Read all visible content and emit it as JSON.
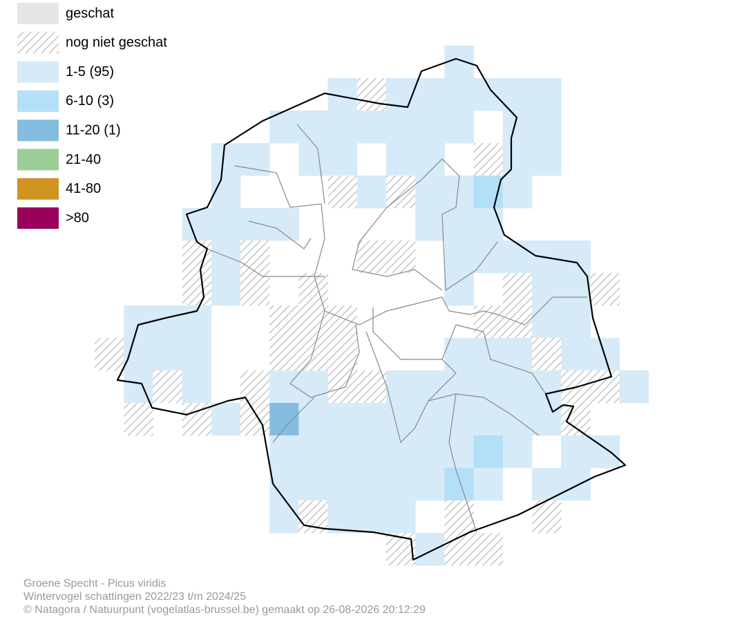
{
  "legend": {
    "items": [
      {
        "label": "geschat",
        "color": "#e6e6e6"
      },
      {
        "label": "nog niet geschat",
        "pattern": "hatch"
      },
      {
        "label": "1-5 (95)",
        "color": "#d6eaf8"
      },
      {
        "label": "6-10 (3)",
        "color": "#b3e0f7"
      },
      {
        "label": "11-20 (1)",
        "color": "#85bde0"
      },
      {
        "label": "21-40",
        "color": "#9acd98"
      },
      {
        "label": "41-80",
        "color": "#d09320"
      },
      {
        "label": ">80",
        "color": "#99005c"
      }
    ]
  },
  "footer": {
    "lines": [
      "Groene Specht - Picus viridis",
      "Wintervogel schattingen 2022/23 t/m 2024/25",
      "© Natagora / Natuurpunt (vogelatlas-brussel.be) gemaakt op 26-08-2026 20:12:29"
    ]
  }
}
